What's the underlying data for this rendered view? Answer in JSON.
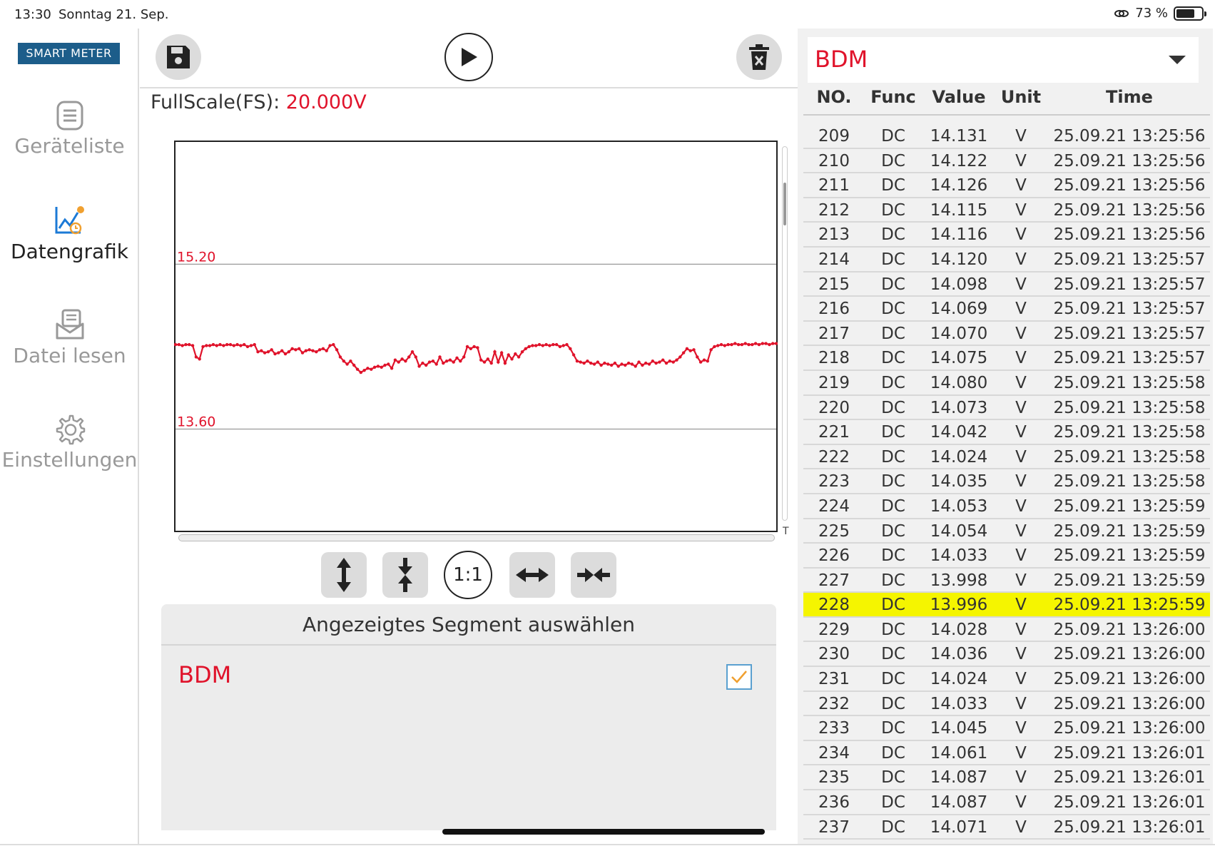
{
  "status_bar": {
    "time": "13:30",
    "date": "Sonntag 21. Sep.",
    "battery": "73 %",
    "battery_level": 0.73
  },
  "sidebar": {
    "logo": "SMART METER",
    "items": [
      {
        "label": "Geräteliste",
        "icon": "list-icon",
        "active": false
      },
      {
        "label": "Datengrafik",
        "icon": "chart-icon",
        "active": true
      },
      {
        "label": "Datei lesen",
        "icon": "file-read-icon",
        "active": false
      },
      {
        "label": "Einstellungen",
        "icon": "gear-icon",
        "active": false
      }
    ]
  },
  "toolbar": {
    "save_icon": "save-icon",
    "play_icon": "play-icon",
    "delete_icon": "delete-icon"
  },
  "fullscale": {
    "label": "FullScale(FS):",
    "value": "20.000V"
  },
  "chart_data": {
    "type": "line",
    "reference_lines": [
      {
        "label": "15.20",
        "value": 15.2
      },
      {
        "label": "13.60",
        "value": 13.6
      }
    ],
    "ylim": [
      12.6,
      16.4
    ],
    "series": [
      {
        "color": "#e0132b",
        "values": [
          14.42,
          14.42,
          14.41,
          14.42,
          14.42,
          14.41,
          14.3,
          14.28,
          14.4,
          14.41,
          14.41,
          14.42,
          14.41,
          14.42,
          14.41,
          14.42,
          14.42,
          14.41,
          14.42,
          14.41,
          14.42,
          14.4,
          14.41,
          14.42,
          14.35,
          14.36,
          14.34,
          14.35,
          14.37,
          14.33,
          14.34,
          14.36,
          14.33,
          14.35,
          14.38,
          14.37,
          14.38,
          14.34,
          14.36,
          14.37,
          14.36,
          14.35,
          14.37,
          14.38,
          14.36,
          14.41,
          14.42,
          14.37,
          14.3,
          14.26,
          14.23,
          14.26,
          14.22,
          14.18,
          14.15,
          14.17,
          14.19,
          14.18,
          14.2,
          14.21,
          14.2,
          14.22,
          14.23,
          14.19,
          14.27,
          14.25,
          14.28,
          14.26,
          14.3,
          14.35,
          14.3,
          14.21,
          14.24,
          14.22,
          14.25,
          14.26,
          14.23,
          14.3,
          14.24,
          14.26,
          14.27,
          14.25,
          14.29,
          14.26,
          14.3,
          14.4,
          14.38,
          14.4,
          14.39,
          14.27,
          14.25,
          14.28,
          14.24,
          14.35,
          14.25,
          14.34,
          14.24,
          14.32,
          14.28,
          14.33,
          14.3,
          14.35,
          14.38,
          14.4,
          14.41,
          14.41,
          14.42,
          14.41,
          14.42,
          14.41,
          14.42,
          14.42,
          14.4,
          14.41,
          14.42,
          14.38,
          14.32,
          14.26,
          14.25,
          14.24,
          14.26,
          14.24,
          14.23,
          14.25,
          14.22,
          14.24,
          14.23,
          14.22,
          14.24,
          14.21,
          14.23,
          14.22,
          14.24,
          14.23,
          14.21,
          14.25,
          14.22,
          14.24,
          14.23,
          14.26,
          14.24,
          14.25,
          14.27,
          14.24,
          14.26,
          14.25,
          14.27,
          14.3,
          14.34,
          14.38,
          14.36,
          14.37,
          14.3,
          14.25,
          14.27,
          14.26,
          14.37,
          14.4,
          14.41,
          14.42,
          14.41,
          14.42,
          14.42,
          14.43,
          14.42,
          14.42,
          14.43,
          14.42,
          14.42,
          14.43,
          14.42,
          14.43,
          14.43,
          14.42,
          14.43,
          14.43
        ]
      }
    ],
    "t_label": "T"
  },
  "zoom_buttons": {
    "one_to_one": "1:1"
  },
  "segment": {
    "title": "Angezeigtes Segment auswählen",
    "item": "BDM",
    "checked": true
  },
  "data_panel": {
    "device": "BDM",
    "headers": {
      "no": "NO.",
      "func": "Func",
      "value": "Value",
      "unit": "Unit",
      "time": "Time"
    },
    "highlight_no": "228",
    "rows": [
      {
        "no": "209",
        "func": "DC",
        "value": "14.131",
        "unit": "V",
        "time": "25.09.21 13:25:56"
      },
      {
        "no": "210",
        "func": "DC",
        "value": "14.122",
        "unit": "V",
        "time": "25.09.21 13:25:56"
      },
      {
        "no": "211",
        "func": "DC",
        "value": "14.126",
        "unit": "V",
        "time": "25.09.21 13:25:56"
      },
      {
        "no": "212",
        "func": "DC",
        "value": "14.115",
        "unit": "V",
        "time": "25.09.21 13:25:56"
      },
      {
        "no": "213",
        "func": "DC",
        "value": "14.116",
        "unit": "V",
        "time": "25.09.21 13:25:56"
      },
      {
        "no": "214",
        "func": "DC",
        "value": "14.120",
        "unit": "V",
        "time": "25.09.21 13:25:57"
      },
      {
        "no": "215",
        "func": "DC",
        "value": "14.098",
        "unit": "V",
        "time": "25.09.21 13:25:57"
      },
      {
        "no": "216",
        "func": "DC",
        "value": "14.069",
        "unit": "V",
        "time": "25.09.21 13:25:57"
      },
      {
        "no": "217",
        "func": "DC",
        "value": "14.070",
        "unit": "V",
        "time": "25.09.21 13:25:57"
      },
      {
        "no": "218",
        "func": "DC",
        "value": "14.075",
        "unit": "V",
        "time": "25.09.21 13:25:57"
      },
      {
        "no": "219",
        "func": "DC",
        "value": "14.080",
        "unit": "V",
        "time": "25.09.21 13:25:58"
      },
      {
        "no": "220",
        "func": "DC",
        "value": "14.073",
        "unit": "V",
        "time": "25.09.21 13:25:58"
      },
      {
        "no": "221",
        "func": "DC",
        "value": "14.042",
        "unit": "V",
        "time": "25.09.21 13:25:58"
      },
      {
        "no": "222",
        "func": "DC",
        "value": "14.024",
        "unit": "V",
        "time": "25.09.21 13:25:58"
      },
      {
        "no": "223",
        "func": "DC",
        "value": "14.035",
        "unit": "V",
        "time": "25.09.21 13:25:58"
      },
      {
        "no": "224",
        "func": "DC",
        "value": "14.053",
        "unit": "V",
        "time": "25.09.21 13:25:59"
      },
      {
        "no": "225",
        "func": "DC",
        "value": "14.054",
        "unit": "V",
        "time": "25.09.21 13:25:59"
      },
      {
        "no": "226",
        "func": "DC",
        "value": "14.033",
        "unit": "V",
        "time": "25.09.21 13:25:59"
      },
      {
        "no": "227",
        "func": "DC",
        "value": "13.998",
        "unit": "V",
        "time": "25.09.21 13:25:59"
      },
      {
        "no": "228",
        "func": "DC",
        "value": "13.996",
        "unit": "V",
        "time": "25.09.21 13:25:59"
      },
      {
        "no": "229",
        "func": "DC",
        "value": "14.028",
        "unit": "V",
        "time": "25.09.21 13:26:00"
      },
      {
        "no": "230",
        "func": "DC",
        "value": "14.036",
        "unit": "V",
        "time": "25.09.21 13:26:00"
      },
      {
        "no": "231",
        "func": "DC",
        "value": "14.024",
        "unit": "V",
        "time": "25.09.21 13:26:00"
      },
      {
        "no": "232",
        "func": "DC",
        "value": "14.033",
        "unit": "V",
        "time": "25.09.21 13:26:00"
      },
      {
        "no": "233",
        "func": "DC",
        "value": "14.045",
        "unit": "V",
        "time": "25.09.21 13:26:00"
      },
      {
        "no": "234",
        "func": "DC",
        "value": "14.061",
        "unit": "V",
        "time": "25.09.21 13:26:01"
      },
      {
        "no": "235",
        "func": "DC",
        "value": "14.087",
        "unit": "V",
        "time": "25.09.21 13:26:01"
      },
      {
        "no": "236",
        "func": "DC",
        "value": "14.087",
        "unit": "V",
        "time": "25.09.21 13:26:01"
      },
      {
        "no": "237",
        "func": "DC",
        "value": "14.071",
        "unit": "V",
        "time": "25.09.21 13:26:01"
      }
    ]
  },
  "colors": {
    "accent_red": "#e0132b",
    "logo_blue": "#1c5d8a",
    "highlight": "#f5f500",
    "checkbox_tick": "#f0a030"
  }
}
